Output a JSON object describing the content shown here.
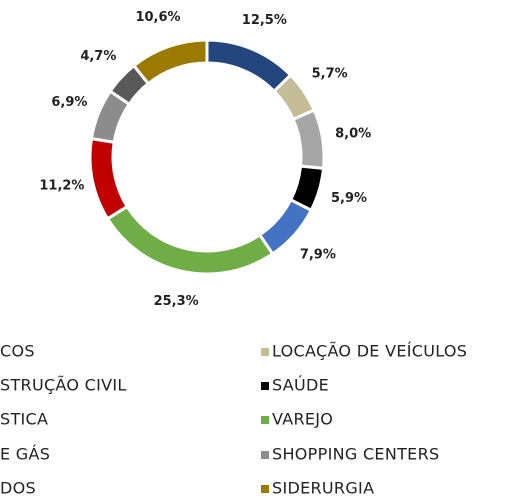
{
  "chart_data": {
    "type": "pie",
    "donut": true,
    "categories": [
      "COS",
      "LOCAÇÃO DE VEÍCULOS",
      "STRUÇÃO CIVIL",
      "SAÚDE",
      "STICA",
      "VAREJO",
      "E GÁS",
      "SHOPPING CENTERS",
      "DOS",
      "SIDERURGIA"
    ],
    "values": [
      12.5,
      5.7,
      8.0,
      5.9,
      7.9,
      25.3,
      11.2,
      6.9,
      4.7,
      10.6
    ],
    "value_labels": [
      "12,5%",
      "5,7%",
      "8,0%",
      "5,9%",
      "7,9%",
      "25,3%",
      "11,2%",
      "6,9%",
      "4,7%",
      "10,6%"
    ],
    "colors": [
      "#23467f",
      "#c4bd97",
      "#a6a6a6",
      "#000000",
      "#4472c4",
      "#70ad47",
      "#c00000",
      "#8c8c8c",
      "#595959",
      "#9c7a00"
    ]
  }
}
